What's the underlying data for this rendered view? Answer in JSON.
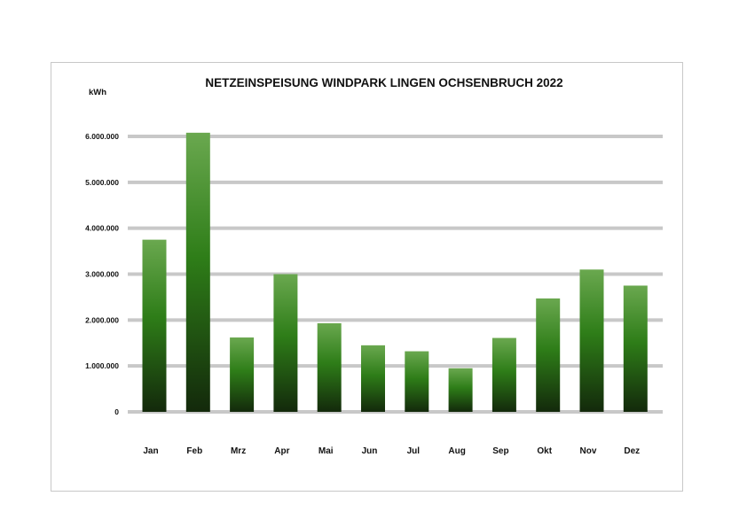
{
  "chart_data": {
    "type": "bar",
    "title": "NETZEINSPEISUNG WINDPARK LINGEN OCHSENBRUCH 2022",
    "ylabel": "kWh",
    "xlabel": "",
    "categories": [
      "Jan",
      "Feb",
      "Mrz",
      "Apr",
      "Mai",
      "Jun",
      "Jul",
      "Aug",
      "Sep",
      "Okt",
      "Nov",
      "Dez"
    ],
    "values": [
      3750000,
      6080000,
      1620000,
      3000000,
      1930000,
      1450000,
      1320000,
      950000,
      1610000,
      2470000,
      3100000,
      2750000
    ],
    "ylim": [
      0,
      6000000
    ],
    "yticks": [
      0,
      1000000,
      2000000,
      3000000,
      4000000,
      5000000,
      6000000
    ],
    "ytick_labels": [
      "0",
      "1.000.000",
      "2.000.000",
      "3.000.000",
      "4.000.000",
      "5.000.000",
      "6.000.000"
    ],
    "grid": true,
    "legend": "none",
    "colors": {
      "bar_top": "#6aa84f",
      "bar_mid": "#2e7d18",
      "bar_bottom": "#13290b",
      "grid": "#c8c8c8"
    }
  }
}
